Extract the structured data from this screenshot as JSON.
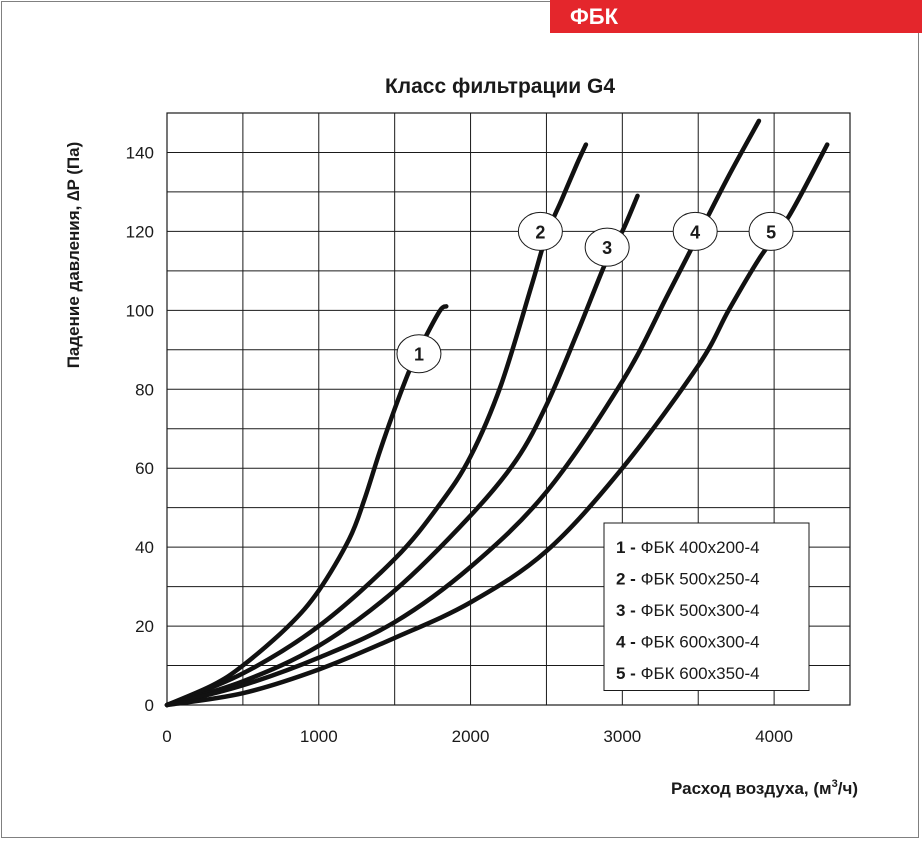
{
  "brand": {
    "label": "ФБК",
    "color": "#e4262c"
  },
  "chart_data": {
    "type": "line",
    "title": "Класс фильтрации G4",
    "xlabel": "Расход воздуха, (м",
    "xlabel_sup": "3",
    "xlabel_end": "/ч)",
    "ylabel": "Падение давления, ∆P (Па)",
    "xlim": [
      0,
      4500
    ],
    "ylim": [
      0,
      150
    ],
    "x_ticks": [
      0,
      1000,
      2000,
      3000,
      4000
    ],
    "y_ticks": [
      0,
      20,
      40,
      60,
      80,
      100,
      120,
      140
    ],
    "grid": true,
    "legend_position": "bottom-right",
    "line_color": "#111111",
    "series": [
      {
        "name": "1",
        "legend": "ФБК 400х200-4",
        "points": [
          [
            0,
            0
          ],
          [
            300,
            5
          ],
          [
            500,
            10
          ],
          [
            800,
            20
          ],
          [
            1000,
            29
          ],
          [
            1200,
            42
          ],
          [
            1300,
            52
          ],
          [
            1400,
            64
          ],
          [
            1500,
            75
          ],
          [
            1600,
            85
          ],
          [
            1700,
            93
          ],
          [
            1800,
            100
          ],
          [
            1840,
            101
          ]
        ]
      },
      {
        "name": "2",
        "legend": "ФБК 500х250-4",
        "points": [
          [
            0,
            0
          ],
          [
            500,
            8
          ],
          [
            1000,
            20
          ],
          [
            1500,
            37
          ],
          [
            1800,
            51
          ],
          [
            2000,
            63
          ],
          [
            2200,
            81
          ],
          [
            2400,
            106
          ],
          [
            2500,
            119
          ],
          [
            2600,
            128
          ],
          [
            2700,
            137
          ],
          [
            2760,
            142
          ]
        ]
      },
      {
        "name": "3",
        "legend": "ФБК 500х300-4",
        "points": [
          [
            0,
            0
          ],
          [
            500,
            6
          ],
          [
            1000,
            15
          ],
          [
            1500,
            29
          ],
          [
            2000,
            48
          ],
          [
            2300,
            62
          ],
          [
            2500,
            76
          ],
          [
            2700,
            94
          ],
          [
            2900,
            113
          ],
          [
            3000,
            120
          ],
          [
            3100,
            129
          ]
        ]
      },
      {
        "name": "4",
        "legend": "ФБК 600х300-4",
        "points": [
          [
            0,
            0
          ],
          [
            500,
            5
          ],
          [
            1000,
            12
          ],
          [
            1500,
            21
          ],
          [
            2000,
            35
          ],
          [
            2500,
            54
          ],
          [
            3000,
            82
          ],
          [
            3300,
            104
          ],
          [
            3500,
            119
          ],
          [
            3700,
            134
          ],
          [
            3900,
            148
          ]
        ]
      },
      {
        "name": "5",
        "legend": "ФБК 600х350-4",
        "points": [
          [
            0,
            0
          ],
          [
            500,
            3
          ],
          [
            1000,
            9
          ],
          [
            1500,
            17
          ],
          [
            2000,
            26
          ],
          [
            2500,
            39
          ],
          [
            3000,
            60
          ],
          [
            3500,
            86
          ],
          [
            3700,
            100
          ],
          [
            3900,
            113
          ],
          [
            4100,
            124
          ],
          [
            4350,
            142
          ]
        ]
      }
    ],
    "labels": [
      {
        "text": "1",
        "x": 1660,
        "y": 89
      },
      {
        "text": "2",
        "x": 2460,
        "y": 120
      },
      {
        "text": "3",
        "x": 2900,
        "y": 116
      },
      {
        "text": "4",
        "x": 3480,
        "y": 120
      },
      {
        "text": "5",
        "x": 3980,
        "y": 120
      }
    ]
  }
}
